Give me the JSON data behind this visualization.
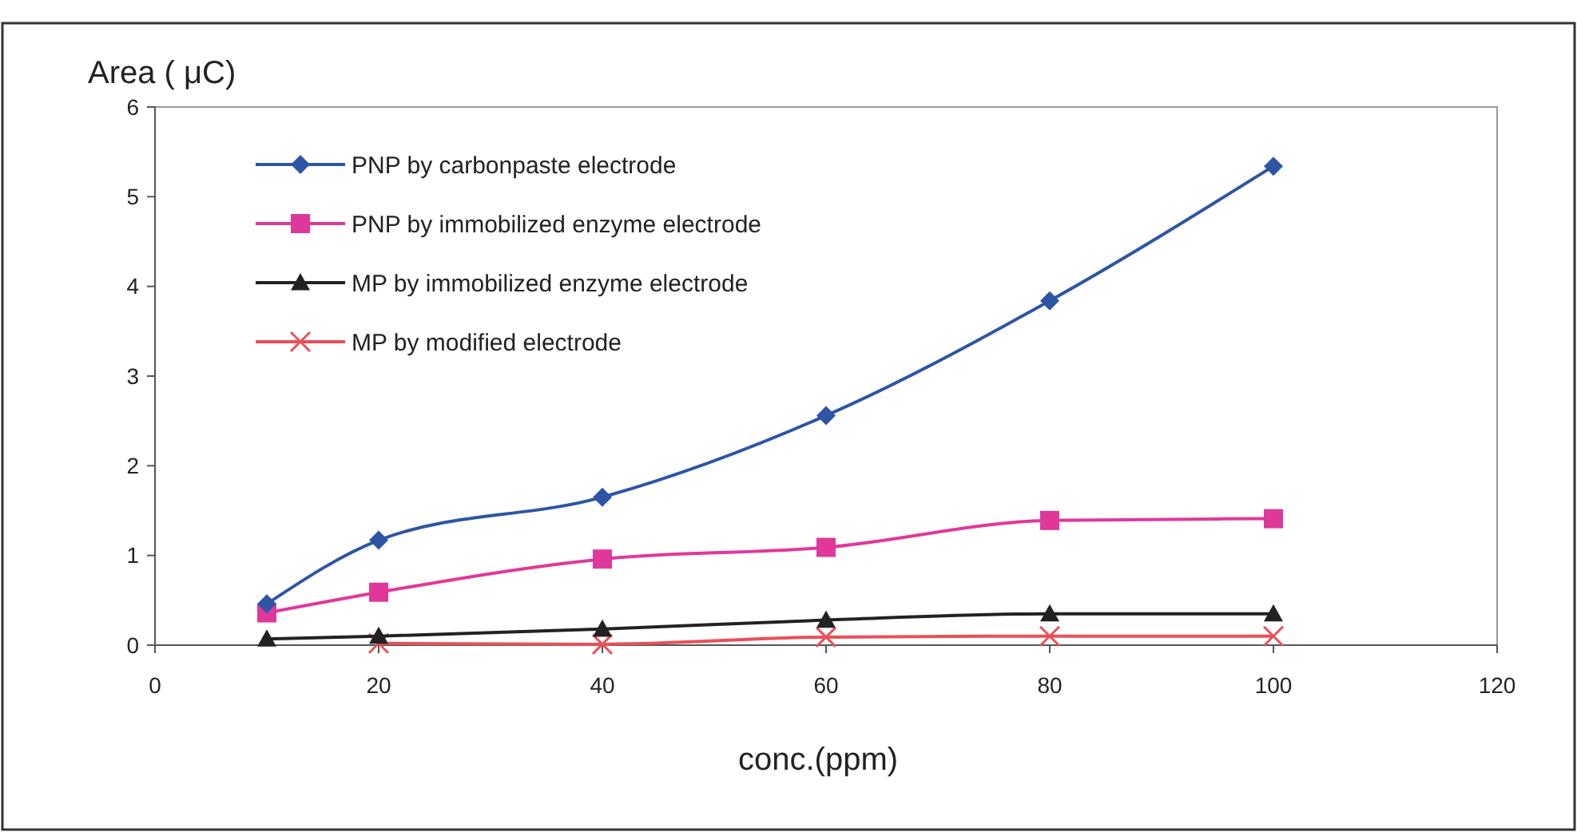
{
  "chart_data": {
    "type": "line",
    "ylabel": "Area ( μC)",
    "xlabel": "conc.(ppm)",
    "xlim": [
      0,
      120
    ],
    "xticks": [
      0,
      20,
      40,
      60,
      80,
      100,
      120
    ],
    "ylim": [
      0,
      6
    ],
    "yticks": [
      0,
      1,
      2,
      3,
      4,
      5,
      6
    ],
    "grid": false,
    "legend": "top left",
    "series": [
      {
        "name": "PNP by carbonpaste electrode",
        "color": "#2e55a4",
        "marker": "diamond",
        "x": [
          10,
          20,
          40,
          60,
          80,
          100
        ],
        "values": [
          0.46,
          1.17,
          1.65,
          2.56,
          3.84,
          5.34
        ]
      },
      {
        "name": "PNP by immobilized enzyme electrode",
        "color": "#e0389a",
        "marker": "square",
        "x": [
          10,
          20,
          40,
          60,
          80,
          100
        ],
        "values": [
          0.36,
          0.59,
          0.96,
          1.09,
          1.39,
          1.41
        ]
      },
      {
        "name": "MP by immobilized enzyme electrode",
        "color": "#222222",
        "marker": "triangle",
        "x": [
          10,
          20,
          40,
          60,
          80,
          100
        ],
        "values": [
          0.07,
          0.1,
          0.18,
          0.28,
          0.35,
          0.35
        ]
      },
      {
        "name": "MP by modified electrode",
        "color": "#e8505a",
        "marker": "cross",
        "x": [
          20,
          40,
          60,
          80,
          100
        ],
        "values": [
          0.02,
          0.01,
          0.09,
          0.1,
          0.1
        ]
      }
    ]
  }
}
